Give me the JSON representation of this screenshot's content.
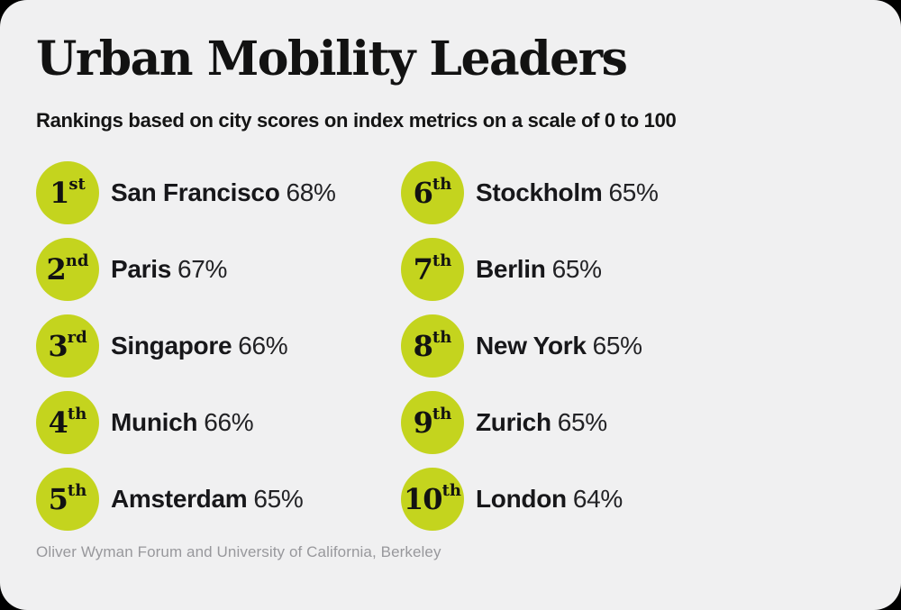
{
  "header": {
    "title": "Urban Mobility Leaders",
    "subtitle": "Rankings based on city scores on index metrics on a scale of 0 to 100"
  },
  "footer": {
    "source": "Oliver Wyman Forum and University of California, Berkeley"
  },
  "colors": {
    "accent_green": "#c4d41e",
    "card_background": "#f0f0f1",
    "title_text": "#121212",
    "source_text": "#98989c"
  },
  "chart_data": {
    "type": "table",
    "title": "Urban Mobility Leaders",
    "subtitle": "Rankings based on city scores on index metrics on a scale of 0 to 100",
    "scale": [
      0,
      100
    ],
    "legend_position": "none",
    "source": "Oliver Wyman Forum and University of California, Berkeley",
    "rankings": [
      {
        "rank": "1",
        "ordinal": "st",
        "city": "San Francisco",
        "value": 68,
        "value_label": "68%"
      },
      {
        "rank": "2",
        "ordinal": "nd",
        "city": "Paris",
        "value": 67,
        "value_label": "67%"
      },
      {
        "rank": "3",
        "ordinal": "rd",
        "city": "Singapore",
        "value": 66,
        "value_label": "66%"
      },
      {
        "rank": "4",
        "ordinal": "th",
        "city": "Munich",
        "value": 66,
        "value_label": "66%"
      },
      {
        "rank": "5",
        "ordinal": "th",
        "city": "Amsterdam",
        "value": 65,
        "value_label": "65%"
      },
      {
        "rank": "6",
        "ordinal": "th",
        "city": "Stockholm",
        "value": 65,
        "value_label": "65%"
      },
      {
        "rank": "7",
        "ordinal": "th",
        "city": "Berlin",
        "value": 65,
        "value_label": "65%"
      },
      {
        "rank": "8",
        "ordinal": "th",
        "city": "New York",
        "value": 65,
        "value_label": "65%"
      },
      {
        "rank": "9",
        "ordinal": "th",
        "city": "Zurich",
        "value": 65,
        "value_label": "65%"
      },
      {
        "rank": "10",
        "ordinal": "th",
        "city": "London",
        "value": 64,
        "value_label": "64%"
      }
    ]
  }
}
